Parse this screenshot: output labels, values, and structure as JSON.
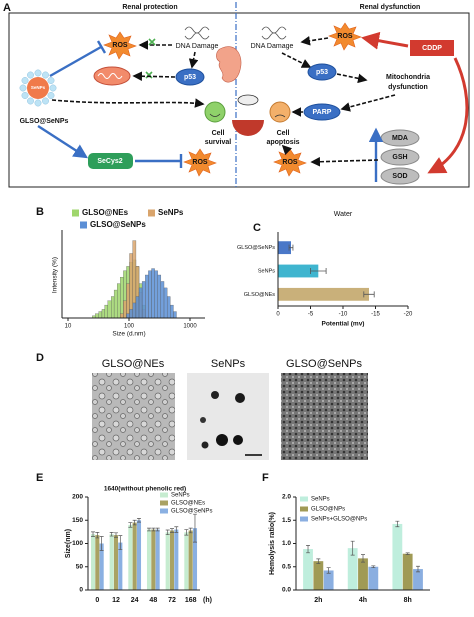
{
  "panel_labels": [
    "A",
    "B",
    "C",
    "D",
    "E",
    "F"
  ],
  "diagram": {
    "left_title": "Renal protection",
    "right_title": "Renal dysfunction",
    "ros": [
      "ROS",
      "ROS",
      "ROS",
      "ROS"
    ],
    "dna_damage": [
      "DNA Damage",
      "DNA Damage"
    ],
    "p53": [
      "p53",
      "p53"
    ],
    "nanoparticle": "SeNPs",
    "nanoparticle_label": "GLSO@SeNPs",
    "cell_survival": [
      "Cell",
      "survival"
    ],
    "cell_apoptosis": [
      "Cell",
      "apoptosis"
    ],
    "secys2": "SeCys2",
    "cddp": "CDDP",
    "mitochondria": [
      "Mitochondria",
      "dysfunction"
    ],
    "parp": "PARP",
    "markers": [
      "MDA",
      "GSH",
      "SOD"
    ]
  },
  "micrographs": {
    "labels": [
      "GLSO@NEs",
      "SeNPs",
      "GLSO@SeNPs"
    ]
  },
  "chart_data": [
    {
      "type": "histogram",
      "xlabel": "Size (d.nm)",
      "ylabel": "Intensity (%)",
      "xscale": "log",
      "xlim": [
        10,
        1000
      ],
      "xticks": [
        10,
        100,
        1000
      ],
      "ylim": [
        0,
        20
      ],
      "bins": [
        25,
        28,
        32,
        36,
        40,
        45,
        51,
        57,
        64,
        72,
        81,
        91,
        102,
        115,
        130,
        146,
        164,
        185,
        208,
        234,
        263,
        296,
        333,
        375,
        422,
        475,
        535,
        600
      ],
      "series": [
        {
          "name": "GLSO@NEs",
          "color": "#9fd66c",
          "values": [
            0.5,
            1,
            1.5,
            2,
            3,
            4,
            5,
            6.5,
            8,
            9.5,
            11,
            12,
            13,
            13.5,
            12,
            8,
            3,
            0,
            0,
            0,
            0,
            0,
            0,
            0,
            0,
            0,
            0
          ]
        },
        {
          "name": "SeNPs",
          "color": "#d9a46c",
          "values": [
            0,
            0,
            0,
            0,
            0,
            0,
            0,
            0,
            0,
            1,
            4,
            8,
            15,
            18,
            12,
            6,
            2,
            0,
            0,
            0,
            0,
            0,
            0,
            0,
            0,
            0,
            0
          ]
        },
        {
          "name": "GLSO@SeNPs",
          "color": "#5b8fd6",
          "values": [
            0,
            0,
            0,
            0,
            0,
            0,
            0,
            0,
            0,
            0,
            0,
            1,
            2,
            3.5,
            5,
            7,
            8.5,
            10,
            11,
            11.5,
            11,
            10,
            8.5,
            7,
            5,
            3,
            1.5
          ]
        }
      ]
    },
    {
      "type": "barh",
      "title": "Water",
      "xlabel": "Potential (mv)",
      "categories": [
        "GLSO@SeNPs",
        "SeNPs",
        "GLSO@NEs"
      ],
      "values": [
        -2,
        -6.2,
        -14
      ],
      "errors": [
        0.3,
        1.2,
        0.8
      ],
      "colors": [
        "#4a78c8",
        "#3fb5cf",
        "#c9b07a"
      ],
      "xlim": [
        0,
        -20
      ],
      "xticks": [
        0,
        -5,
        -10,
        -15,
        -20
      ]
    },
    {
      "type": "bar",
      "title": "1640(without phenolic red)",
      "ylabel": "Size(nm)",
      "xlabel": "(h)",
      "categories": [
        "0",
        "12",
        "24",
        "48",
        "72",
        "168"
      ],
      "ylim": [
        0,
        200
      ],
      "yticks": [
        0,
        50,
        100,
        150,
        200
      ],
      "series": [
        {
          "name": "SeNPs",
          "color": "#c6ecd0",
          "values": [
            120,
            120,
            140,
            130,
            124,
            124
          ],
          "errors": [
            5,
            4,
            5,
            3,
            5,
            6
          ]
        },
        {
          "name": "GLSO@NEs",
          "color": "#a9a263",
          "values": [
            118,
            118,
            145,
            130,
            128,
            128
          ],
          "errors": [
            6,
            5,
            5,
            3,
            4,
            5
          ]
        },
        {
          "name": "GLSO@SeNPs",
          "color": "#8ab0e2",
          "values": [
            100,
            102,
            150,
            130,
            130,
            133
          ],
          "errors": [
            15,
            15,
            4,
            3,
            6,
            30
          ]
        }
      ]
    },
    {
      "type": "bar",
      "ylabel": "Hemolysis ratio(%)",
      "categories": [
        "2h",
        "4h",
        "8h"
      ],
      "ylim": [
        0,
        2
      ],
      "yticks": [
        {
          "value": 0,
          "label": "0.0"
        },
        {
          "value": 0.5,
          "label": "0.5"
        },
        {
          "value": 1,
          "label": "1.0"
        },
        {
          "value": 1.5,
          "label": "1.5"
        },
        {
          "value": 2,
          "label": "2.0"
        }
      ],
      "series": [
        {
          "name": "SeNPs",
          "color": "#bfeedd",
          "values": [
            0.88,
            0.9,
            1.42
          ],
          "errors": [
            0.08,
            0.15,
            0.06
          ]
        },
        {
          "name": "GLSO@NPs",
          "color": "#a09a55",
          "values": [
            0.62,
            0.68,
            0.78
          ],
          "errors": [
            0.05,
            0.08,
            0.02
          ]
        },
        {
          "name": "SeNPs+GLSO@NPs",
          "color": "#8aaee0",
          "values": [
            0.42,
            0.5,
            0.45
          ],
          "errors": [
            0.06,
            0.02,
            0.06
          ]
        }
      ]
    }
  ]
}
